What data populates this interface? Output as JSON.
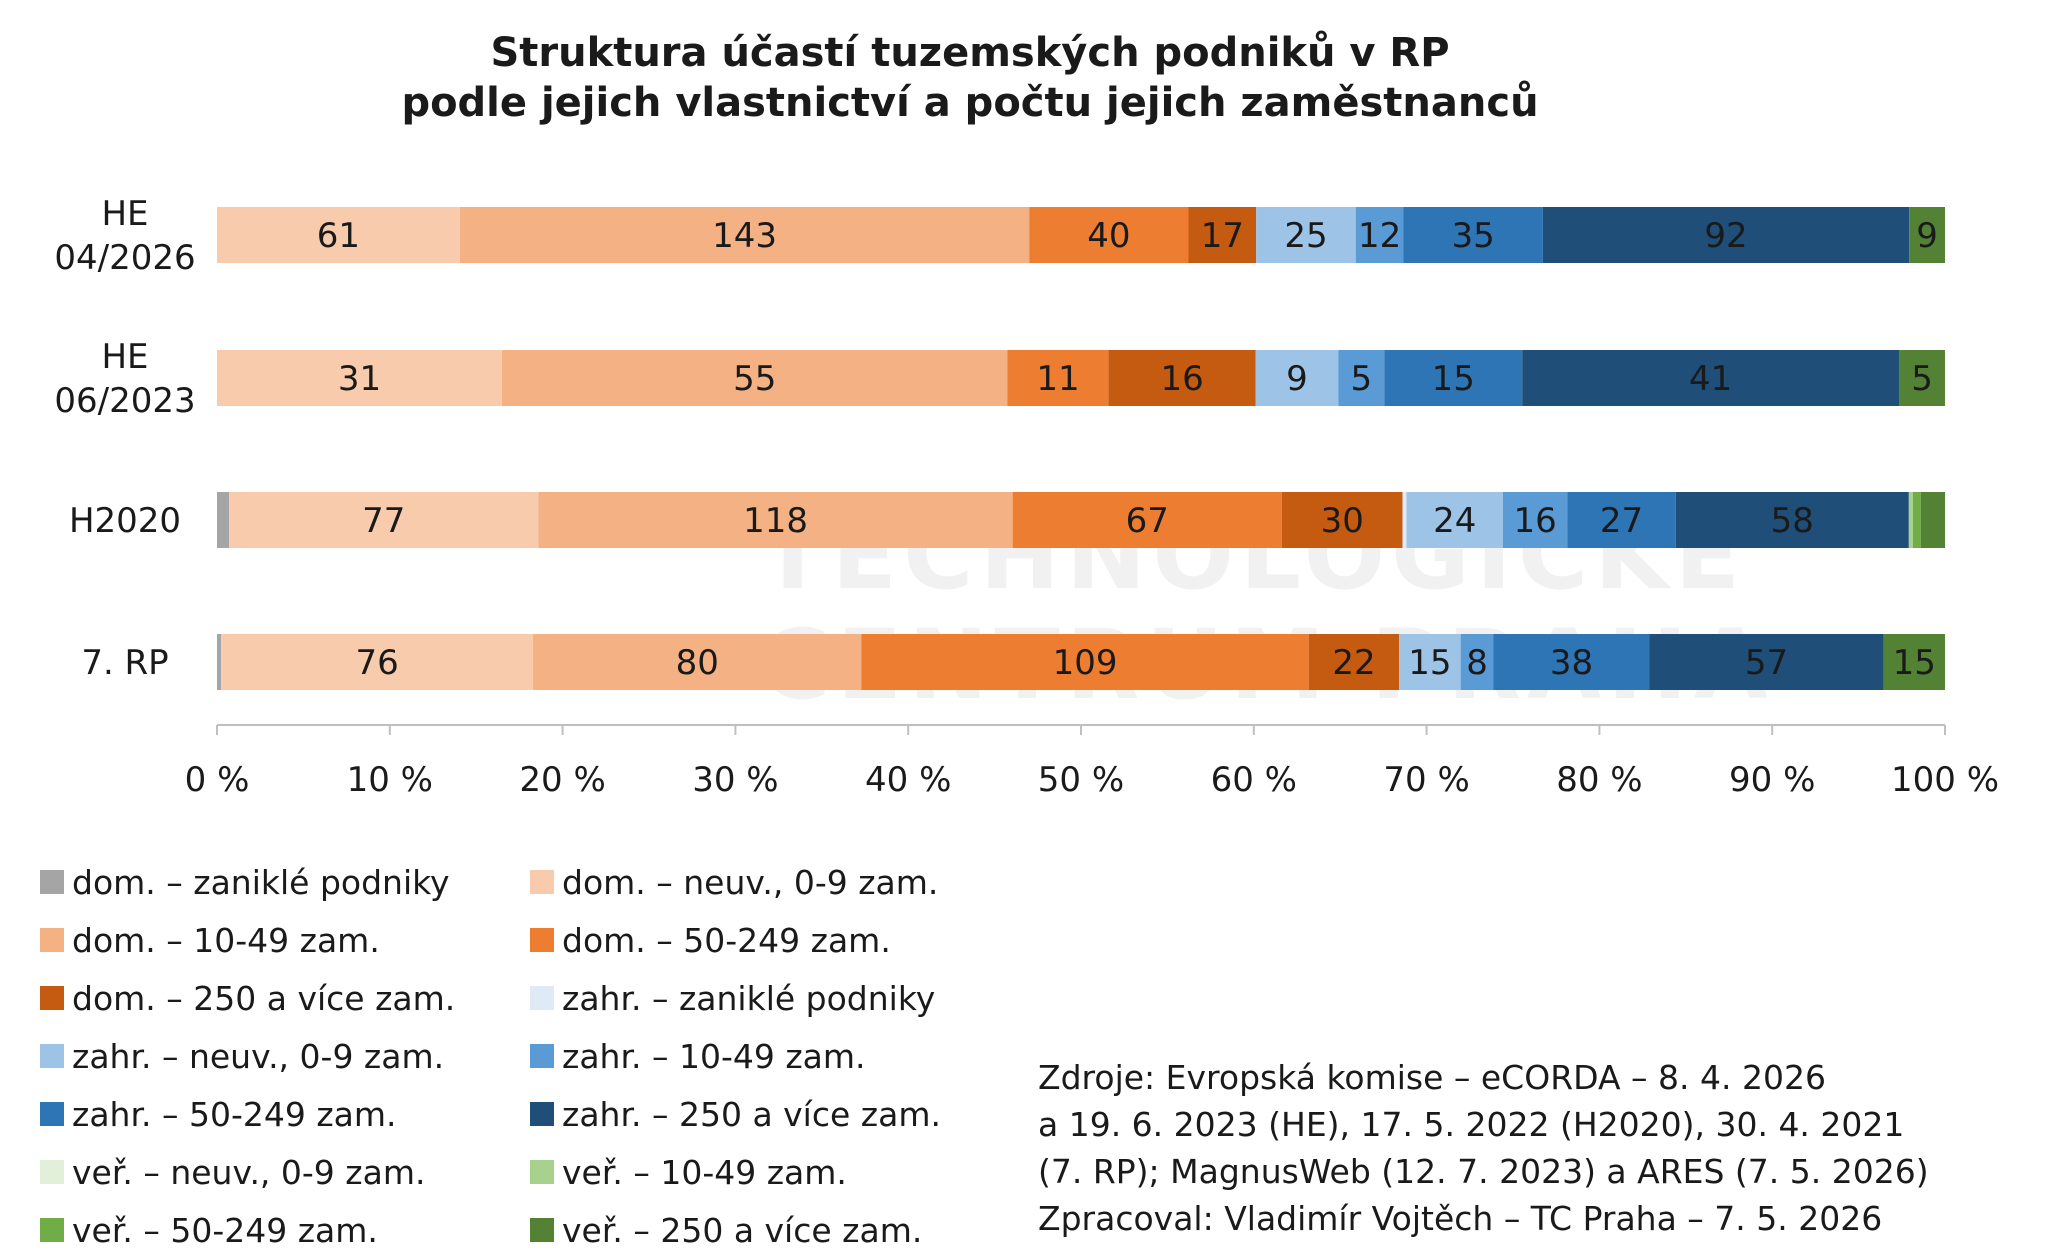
{
  "title_lines": [
    "Struktura účastí tuzemských podniků v RP",
    "podle jejich vlastnictví a počtu jejich zaměstnanců"
  ],
  "watermark_lines": [
    "TECHNOLOGICKÉ",
    "CENTRUM PRAHA"
  ],
  "source_lines": [
    "Zdroje: Evropská komise – eCORDA – 8. 4. 2026",
    "a 19. 6. 2023 (HE), 17. 5. 2022 (H2020), 30. 4. 2021",
    "(7. RP); MagnusWeb (12. 7. 2023) a ARES (7. 5. 2026)",
    "Zpracoval: Vladimír Vojtěch – TC Praha – 7. 5. 2026"
  ],
  "chart_data": {
    "type": "bar",
    "orientation": "horizontal",
    "stacking": "percent",
    "title": "Struktura účastí tuzemských podniků v RP podle jejich vlastnictví a počtu jejich zaměstnanců",
    "categories": [
      [
        "HE",
        "04/2026"
      ],
      [
        "HE",
        "06/2023"
      ],
      [
        "H2020"
      ],
      [
        "7. RP"
      ]
    ],
    "x_ticks": [
      "0 %",
      "10 %",
      "20 %",
      "30 %",
      "40 %",
      "50 %",
      "60 %",
      "70 %",
      "80 %",
      "90 %",
      "100 %"
    ],
    "xlim": [
      0,
      100
    ],
    "grid": false,
    "legend_position": "bottom-left",
    "series": [
      {
        "name": "dom. – zaniklé podniky",
        "color": "#a5a5a5",
        "values": [
          0,
          0,
          3,
          1
        ]
      },
      {
        "name": "dom. – neuv., 0-9 zam.",
        "color": "#f8cbad",
        "values": [
          61,
          31,
          77,
          76
        ]
      },
      {
        "name": "dom. – 10-49 zam.",
        "color": "#f4b183",
        "values": [
          143,
          55,
          118,
          80
        ]
      },
      {
        "name": "dom. – 50-249 zam.",
        "color": "#ed7d31",
        "values": [
          40,
          11,
          67,
          109
        ]
      },
      {
        "name": "dom. – 250 a více zam.",
        "color": "#c55a11",
        "values": [
          17,
          16,
          30,
          22
        ]
      },
      {
        "name": "zahr. – zaniklé podniky",
        "color": "#deebf7",
        "values": [
          0,
          0,
          1,
          0
        ]
      },
      {
        "name": "zahr. – neuv., 0-9 zam.",
        "color": "#9dc3e6",
        "values": [
          25,
          9,
          24,
          15
        ]
      },
      {
        "name": "zahr. – 10-49 zam.",
        "color": "#5b9bd5",
        "values": [
          12,
          5,
          16,
          8
        ]
      },
      {
        "name": "zahr. – 50-249 zam.",
        "color": "#2e75b6",
        "values": [
          35,
          15,
          27,
          38
        ]
      },
      {
        "name": "zahr. – 250 a více zam.",
        "color": "#1f4e79",
        "values": [
          92,
          41,
          58,
          57
        ]
      },
      {
        "name": "veř. – neuv., 0-9 zam.",
        "color": "#e2f0d9",
        "values": [
          0,
          0,
          0,
          0
        ]
      },
      {
        "name": "veř. – 10-49 zam.",
        "color": "#a9d18e",
        "values": [
          0,
          0,
          1,
          0
        ]
      },
      {
        "name": "veř. – 50-249 zam.",
        "color": "#70ad47",
        "values": [
          0,
          0,
          2,
          0
        ]
      },
      {
        "name": "veř. – 250 a více zam.",
        "color": "#548235",
        "values": [
          9,
          5,
          6,
          15
        ]
      }
    ],
    "labelled_values": [
      [
        61,
        143,
        40,
        17,
        25,
        12,
        35,
        92,
        9
      ],
      [
        31,
        55,
        11,
        16,
        9,
        5,
        15,
        41,
        5
      ],
      [
        77,
        118,
        67,
        30,
        24,
        16,
        27,
        58,
        6
      ],
      [
        76,
        80,
        109,
        22,
        15,
        8,
        38,
        57,
        15
      ]
    ]
  }
}
